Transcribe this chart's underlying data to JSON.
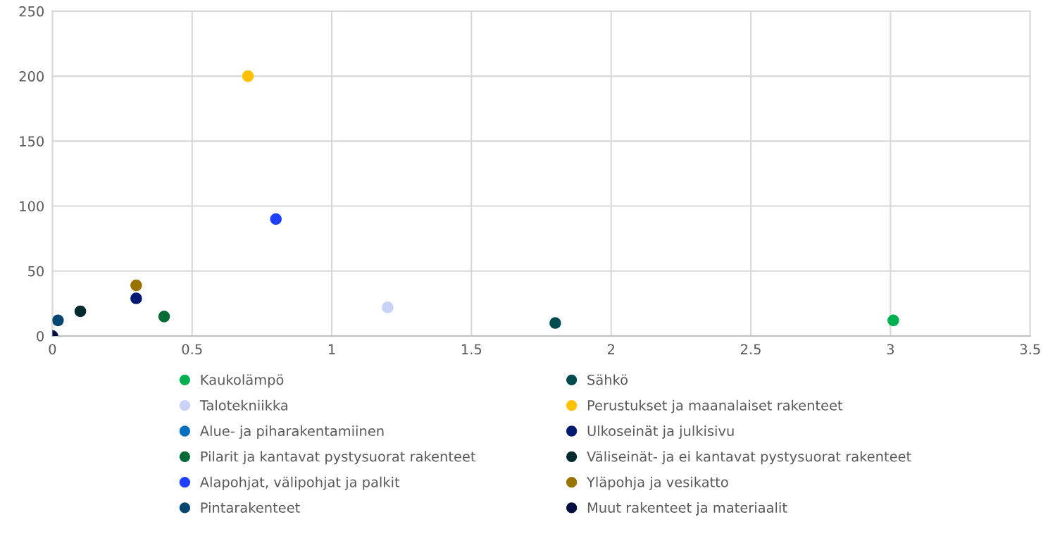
{
  "chart_data": {
    "type": "scatter",
    "xlim": [
      0,
      3.5
    ],
    "ylim": [
      0,
      250
    ],
    "xticks": [
      0,
      0.5,
      1,
      1.5,
      2,
      2.5,
      3,
      3.5
    ],
    "yticks": [
      0,
      50,
      100,
      150,
      200,
      250
    ],
    "grid": true,
    "legend": "bottom",
    "marker": "circle",
    "series": [
      {
        "name": "Kaukolämpö",
        "color": "#00b050",
        "x": [
          3.01
        ],
        "values": [
          12
        ]
      },
      {
        "name": "Sähkö",
        "color": "#004b50",
        "x": [
          1.8
        ],
        "values": [
          10
        ]
      },
      {
        "name": "Talotekniikka",
        "color": "#c9d3f7",
        "x": [
          1.2
        ],
        "values": [
          22
        ]
      },
      {
        "name": "Perustukset ja maanalaiset rakenteet",
        "color": "#ffc000",
        "x": [
          0.7
        ],
        "values": [
          200
        ]
      },
      {
        "name": "Alue- ja piharakentamiinen",
        "color": "#0070c0",
        "x": [
          null
        ],
        "values": [
          null
        ]
      },
      {
        "name": "Ulkoseinät ja julkisivu",
        "color": "#001a72",
        "x": [
          0.3
        ],
        "values": [
          29
        ]
      },
      {
        "name": "Pilarit ja kantavat pystysuorat rakenteet",
        "color": "#006b35",
        "x": [
          0.4
        ],
        "values": [
          15
        ]
      },
      {
        "name": "Väliseinät- ja ei kantavat pystysuorat rakenteet",
        "color": "#002a2e",
        "x": [
          0.1
        ],
        "values": [
          19
        ]
      },
      {
        "name": "Alapohjat, välipohjat ja palkit",
        "color": "#2040ff",
        "x": [
          0.8
        ],
        "values": [
          90
        ]
      },
      {
        "name": "Yläpohja ja vesikatto",
        "color": "#997300",
        "x": [
          0.3
        ],
        "values": [
          39
        ]
      },
      {
        "name": "Pintarakenteet",
        "color": "#00466e",
        "x": [
          0.02
        ],
        "values": [
          12
        ]
      },
      {
        "name": "Muut rakenteet ja materiaalit",
        "color": "#000d40",
        "x": [
          0
        ],
        "values": [
          0
        ]
      }
    ]
  }
}
